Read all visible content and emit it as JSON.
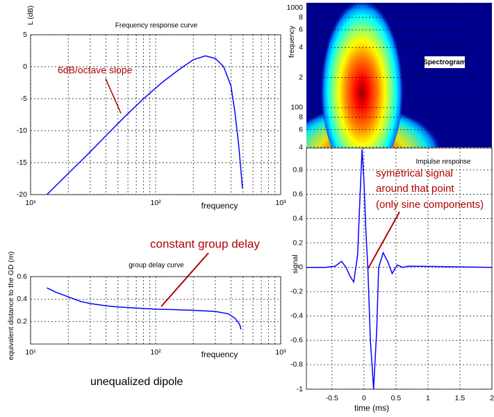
{
  "chart_data": [
    {
      "type": "line",
      "title": "Frequency response curve",
      "xlabel": "frequency",
      "ylabel": "L (dB)",
      "annotation": "6dB/octave slope",
      "xlog": true,
      "grid": true,
      "xlim": [
        10,
        1000
      ],
      "xticks": [
        {
          "value": 10,
          "label": "10¹"
        },
        {
          "value": 100,
          "label": "10²"
        },
        {
          "value": 1000,
          "label": "10³"
        }
      ],
      "xminor": [
        20,
        30,
        40,
        50,
        60,
        70,
        80,
        90,
        200,
        300,
        400,
        500,
        600,
        700,
        800,
        900
      ],
      "ylim": [
        -20,
        5
      ],
      "yticks": [
        -20,
        -15,
        -10,
        -5,
        0,
        5
      ],
      "series": [
        {
          "color": "#0000ff",
          "x": [
            13.5,
            20,
            28,
            40,
            56,
            80,
            112,
            150,
            200,
            250,
            300,
            350,
            400,
            430,
            460,
            480,
            494
          ],
          "values": [
            -20,
            -16.7,
            -13.9,
            -10.8,
            -7.9,
            -5,
            -2.5,
            -0.6,
            1.1,
            1.7,
            1.3,
            0,
            -3,
            -7,
            -12,
            -16,
            -19
          ]
        }
      ]
    },
    {
      "type": "line",
      "title": "group delay curve",
      "xlabel": "frequency",
      "ylabel": "equivalent distance to the GD (m)",
      "annotation": "constant group delay",
      "xlog": true,
      "grid": true,
      "xlim": [
        10,
        1000
      ],
      "xticks": [
        {
          "value": 10,
          "label": "10¹"
        },
        {
          "value": 100,
          "label": "10²"
        },
        {
          "value": 1000,
          "label": "10³"
        }
      ],
      "xminor": [
        20,
        30,
        40,
        50,
        60,
        70,
        80,
        90,
        200,
        300,
        400,
        500,
        600,
        700,
        800,
        900
      ],
      "ylim": [
        0,
        0.6
      ],
      "yticks": [
        0.2,
        0.4,
        0.6
      ],
      "series": [
        {
          "color": "#0000ff",
          "x": [
            13.5,
            16,
            20,
            25,
            30,
            40,
            50,
            70,
            100,
            150,
            200,
            300,
            380,
            430,
            460,
            475,
            480
          ],
          "values": [
            0.5,
            0.46,
            0.42,
            0.38,
            0.36,
            0.34,
            0.33,
            0.32,
            0.31,
            0.305,
            0.3,
            0.29,
            0.27,
            0.23,
            0.19,
            0.16,
            0.13
          ]
        }
      ]
    },
    {
      "type": "spectrogram",
      "label": "Spectrogram",
      "ylabel": "frequency",
      "ylog": true,
      "grid": true,
      "ylim": [
        40,
        1120
      ],
      "yticks": [
        {
          "value": 40,
          "label": "4"
        },
        {
          "value": 60,
          "label": "6"
        },
        {
          "value": 80,
          "label": "8"
        },
        100,
        {
          "value": 200,
          "label": "2"
        },
        {
          "value": 400,
          "label": "4"
        },
        {
          "value": 600,
          "label": "6"
        },
        {
          "value": 800,
          "label": "8"
        },
        1000
      ]
    },
    {
      "type": "line",
      "title": "Impulse response",
      "xlabel": "time (ms)",
      "ylabel": "signal",
      "annotation": [
        "symétrical signal",
        "around that point",
        "(only sine components)"
      ],
      "grid": true,
      "xlim": [
        -0.9,
        2
      ],
      "xticks": [
        -0.5,
        0,
        0.5,
        1,
        1.5,
        2
      ],
      "ylim": [
        -1,
        0.98
      ],
      "yticks": [
        -1,
        -0.8,
        -0.6,
        -0.4,
        -0.2,
        0,
        0.2,
        0.4,
        0.6,
        0.8
      ],
      "series": [
        {
          "color": "#0000ff",
          "x": [
            -0.9,
            -0.6,
            -0.45,
            -0.35,
            -0.28,
            -0.22,
            -0.16,
            -0.1,
            -0.06,
            -0.03,
            0,
            0.03,
            0.06,
            0.1,
            0.15,
            0.2,
            0.23,
            0.3,
            0.37,
            0.44,
            0.52,
            0.6,
            0.7,
            2
          ],
          "values": [
            0,
            0,
            0.01,
            0.05,
            0,
            -0.07,
            -0.12,
            0.1,
            0.6,
            0.97,
            0.7,
            0.3,
            0,
            -0.6,
            -1,
            -0.5,
            0,
            0.12,
            0.05,
            -0.05,
            0.02,
            0,
            0.01,
            0
          ]
        }
      ]
    }
  ],
  "caption": "unequalized dipole"
}
